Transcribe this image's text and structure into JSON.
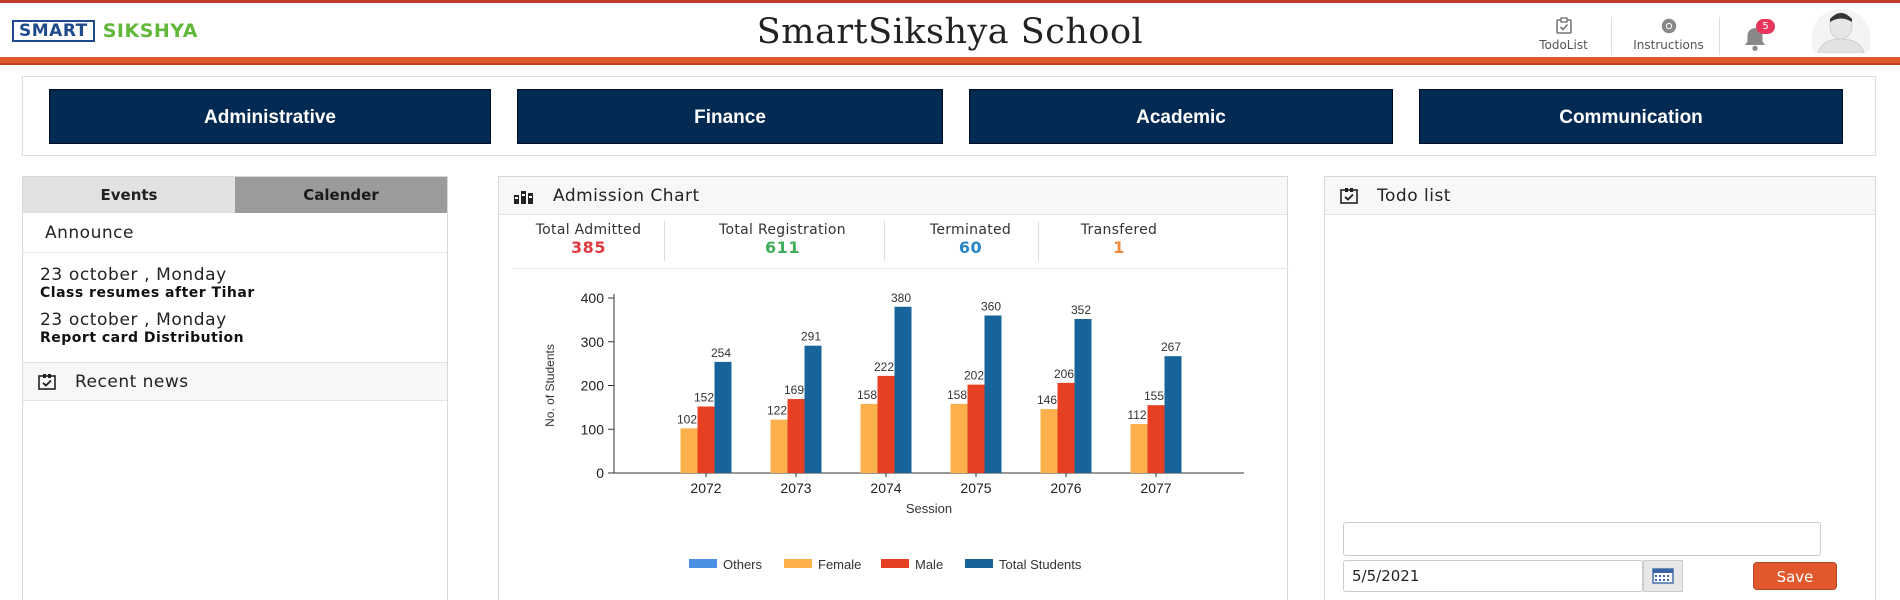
{
  "header": {
    "logo_smart": "SMART",
    "logo_sikshya": "SIKSHYA",
    "school_name": "SmartSikshya School",
    "todolist_label": "TodoList",
    "instructions_label": "Instructions",
    "notification_count": "5"
  },
  "nav": {
    "administrative": "Administrative",
    "finance": "Finance",
    "academic": "Academic",
    "communication": "Communication"
  },
  "left_panel": {
    "tab_events": "Events",
    "tab_calender": "Calender",
    "announce_title": "Announce",
    "events": [
      {
        "date": "23 october , Monday",
        "description": "Class resumes after Tihar"
      },
      {
        "date": "23 october , Monday",
        "description": "Report card Distribution"
      }
    ],
    "recent_news_title": "Recent news"
  },
  "admission": {
    "title": "Admission Chart",
    "stats": [
      {
        "label": "Total Admitted",
        "value": "385",
        "color": "#e0393e"
      },
      {
        "label": "Total Registration",
        "value": "611",
        "color": "#3fae5a"
      },
      {
        "label": "Terminated",
        "value": "60",
        "color": "#2a86c4"
      },
      {
        "label": "Transfered",
        "value": "1",
        "color": "#f08a3a"
      }
    ]
  },
  "chart_data": {
    "type": "bar",
    "xlabel": "Session",
    "ylabel": "No. of Students",
    "ylim": [
      0,
      400
    ],
    "yticks": [
      0,
      100,
      200,
      300,
      400
    ],
    "categories": [
      "2072",
      "2073",
      "2074",
      "2075",
      "2076",
      "2077"
    ],
    "series": [
      {
        "name": "Others",
        "color": "#4a90e2",
        "values": [
          0,
          0,
          0,
          0,
          0,
          0
        ]
      },
      {
        "name": "Female",
        "color": "#fbb04c",
        "values": [
          102,
          122,
          158,
          158,
          146,
          112
        ]
      },
      {
        "name": "Male",
        "color": "#e63f22",
        "values": [
          152,
          169,
          222,
          202,
          206,
          155
        ]
      },
      {
        "name": "Total Students",
        "color": "#17649a",
        "values": [
          254,
          291,
          380,
          360,
          352,
          267
        ]
      }
    ],
    "legend_position": "bottom"
  },
  "todo": {
    "title": "Todo list",
    "date_value": "5/5/2021",
    "save_label": "Save"
  }
}
